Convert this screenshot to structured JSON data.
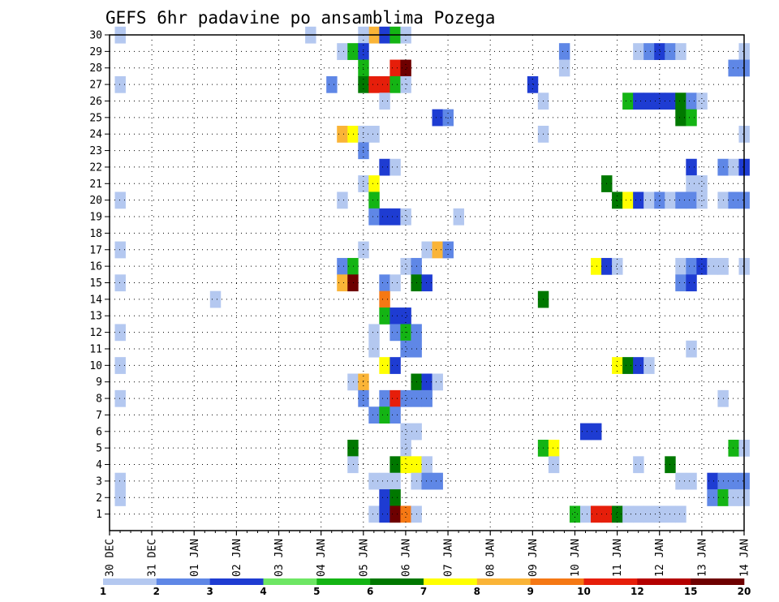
{
  "chart_data": {
    "type": "heatmap",
    "title": "GEFS 6hr padavine po ansamblima Pozega",
    "xlabel": "",
    "ylabel": "",
    "x_tick_labels": [
      "30 DEC",
      "31 DEC",
      "01 JAN",
      "02 JAN",
      "03 JAN",
      "04 JAN",
      "05 JAN",
      "06 JAN",
      "07 JAN",
      "08 JAN",
      "09 JAN",
      "10 JAN",
      "11 JAN",
      "12 JAN",
      "13 JAN",
      "14 JAN"
    ],
    "y_tick_labels": [
      "1",
      "2",
      "3",
      "4",
      "5",
      "6",
      "7",
      "8",
      "9",
      "10",
      "11",
      "12",
      "13",
      "14",
      "15",
      "16",
      "17",
      "18",
      "19",
      "20",
      "21",
      "22",
      "23",
      "24",
      "25",
      "26",
      "27",
      "28",
      "29",
      "30"
    ],
    "x_range_days": [
      0,
      15
    ],
    "y_range_members": [
      0,
      30
    ],
    "grid": true,
    "colorbar": {
      "placement": "bottom",
      "labels": [
        "1",
        "2",
        "3",
        "4",
        "5",
        "6",
        "7",
        "8",
        "9",
        "10",
        "12",
        "15",
        "20"
      ],
      "colors": [
        "#b4c8f0",
        "#5f87e6",
        "#1e3cd2",
        "#6ee664",
        "#14b414",
        "#007800",
        "#ffff00",
        "#fab437",
        "#f57814",
        "#e61e0a",
        "#b40000",
        "#6e0000"
      ]
    },
    "cells": [
      {
        "m": 30,
        "d": 0.25,
        "v": 1
      },
      {
        "m": 30,
        "d": 4.75,
        "v": 1
      },
      {
        "m": 30,
        "d": 6.25,
        "v": 8
      },
      {
        "m": 30,
        "d": 6.5,
        "v": 3
      },
      {
        "m": 30,
        "d": 6.75,
        "v": 5
      },
      {
        "m": 30,
        "d": 7.0,
        "v": 1
      },
      {
        "m": 30,
        "d": 6.0,
        "v": 1
      },
      {
        "m": 29,
        "d": 5.5,
        "v": 1
      },
      {
        "m": 29,
        "d": 5.75,
        "v": 5
      },
      {
        "m": 29,
        "d": 6.0,
        "v": 3
      },
      {
        "m": 29,
        "d": 10.75,
        "v": 2
      },
      {
        "m": 29,
        "d": 12.5,
        "v": 1
      },
      {
        "m": 29,
        "d": 12.75,
        "v": 2
      },
      {
        "m": 29,
        "d": 13.0,
        "v": 3
      },
      {
        "m": 29,
        "d": 13.25,
        "v": 2
      },
      {
        "m": 29,
        "d": 13.5,
        "v": 1
      },
      {
        "m": 29,
        "d": 15.0,
        "v": 1
      },
      {
        "m": 28,
        "d": 6.0,
        "v": 5
      },
      {
        "m": 28,
        "d": 6.75,
        "v": 10
      },
      {
        "m": 28,
        "d": 7.0,
        "v": 12
      },
      {
        "m": 28,
        "d": 10.75,
        "v": 1
      },
      {
        "m": 28,
        "d": 14.75,
        "v": 2
      },
      {
        "m": 28,
        "d": 15.0,
        "v": 2
      },
      {
        "m": 27,
        "d": 0.25,
        "v": 1
      },
      {
        "m": 27,
        "d": 5.25,
        "v": 2
      },
      {
        "m": 27,
        "d": 6.0,
        "v": 6
      },
      {
        "m": 27,
        "d": 6.25,
        "v": 10
      },
      {
        "m": 27,
        "d": 6.5,
        "v": 10
      },
      {
        "m": 27,
        "d": 6.75,
        "v": 5
      },
      {
        "m": 27,
        "d": 7.0,
        "v": 1
      },
      {
        "m": 27,
        "d": 10.0,
        "v": 3
      },
      {
        "m": 26,
        "d": 6.5,
        "v": 1
      },
      {
        "m": 26,
        "d": 10.25,
        "v": 1
      },
      {
        "m": 26,
        "d": 12.25,
        "v": 5
      },
      {
        "m": 26,
        "d": 12.5,
        "v": 3
      },
      {
        "m": 26,
        "d": 12.75,
        "v": 3
      },
      {
        "m": 26,
        "d": 13.0,
        "v": 3
      },
      {
        "m": 26,
        "d": 13.25,
        "v": 3
      },
      {
        "m": 26,
        "d": 13.5,
        "v": 6
      },
      {
        "m": 26,
        "d": 13.75,
        "v": 2
      },
      {
        "m": 26,
        "d": 14.0,
        "v": 1
      },
      {
        "m": 25,
        "d": 7.75,
        "v": 3
      },
      {
        "m": 25,
        "d": 8.0,
        "v": 2
      },
      {
        "m": 25,
        "d": 13.5,
        "v": 6
      },
      {
        "m": 25,
        "d": 13.75,
        "v": 5
      },
      {
        "m": 24,
        "d": 5.5,
        "v": 8
      },
      {
        "m": 24,
        "d": 5.75,
        "v": 7
      },
      {
        "m": 24,
        "d": 6.0,
        "v": 1
      },
      {
        "m": 24,
        "d": 6.25,
        "v": 1
      },
      {
        "m": 24,
        "d": 10.25,
        "v": 1
      },
      {
        "m": 24,
        "d": 15.0,
        "v": 1
      },
      {
        "m": 23,
        "d": 6.0,
        "v": 2
      },
      {
        "m": 22,
        "d": 6.5,
        "v": 3
      },
      {
        "m": 22,
        "d": 6.75,
        "v": 1
      },
      {
        "m": 22,
        "d": 13.75,
        "v": 3
      },
      {
        "m": 22,
        "d": 14.5,
        "v": 2
      },
      {
        "m": 22,
        "d": 14.75,
        "v": 1
      },
      {
        "m": 22,
        "d": 15.0,
        "v": 3
      },
      {
        "m": 21,
        "d": 6.0,
        "v": 1
      },
      {
        "m": 21,
        "d": 6.25,
        "v": 7
      },
      {
        "m": 21,
        "d": 11.75,
        "v": 6
      },
      {
        "m": 21,
        "d": 13.75,
        "v": 1
      },
      {
        "m": 21,
        "d": 14.0,
        "v": 1
      },
      {
        "m": 20,
        "d": 0.25,
        "v": 1
      },
      {
        "m": 20,
        "d": 5.5,
        "v": 1
      },
      {
        "m": 20,
        "d": 6.25,
        "v": 5
      },
      {
        "m": 20,
        "d": 12.0,
        "v": 6
      },
      {
        "m": 20,
        "d": 12.25,
        "v": 7
      },
      {
        "m": 20,
        "d": 12.5,
        "v": 3
      },
      {
        "m": 20,
        "d": 12.75,
        "v": 1
      },
      {
        "m": 20,
        "d": 13.0,
        "v": 2
      },
      {
        "m": 20,
        "d": 13.25,
        "v": 1
      },
      {
        "m": 20,
        "d": 13.5,
        "v": 2
      },
      {
        "m": 20,
        "d": 13.75,
        "v": 2
      },
      {
        "m": 20,
        "d": 14.0,
        "v": 1
      },
      {
        "m": 20,
        "d": 14.5,
        "v": 1
      },
      {
        "m": 20,
        "d": 14.75,
        "v": 2
      },
      {
        "m": 20,
        "d": 15.0,
        "v": 2
      },
      {
        "m": 19,
        "d": 6.25,
        "v": 2
      },
      {
        "m": 19,
        "d": 6.5,
        "v": 3
      },
      {
        "m": 19,
        "d": 6.75,
        "v": 3
      },
      {
        "m": 19,
        "d": 7.0,
        "v": 1
      },
      {
        "m": 19,
        "d": 8.25,
        "v": 1
      },
      {
        "m": 17,
        "d": 0.25,
        "v": 1
      },
      {
        "m": 17,
        "d": 6.0,
        "v": 1
      },
      {
        "m": 17,
        "d": 7.5,
        "v": 1
      },
      {
        "m": 17,
        "d": 7.75,
        "v": 8
      },
      {
        "m": 17,
        "d": 8.0,
        "v": 2
      },
      {
        "m": 16,
        "d": 5.5,
        "v": 2
      },
      {
        "m": 16,
        "d": 5.75,
        "v": 5
      },
      {
        "m": 16,
        "d": 7.0,
        "v": 1
      },
      {
        "m": 16,
        "d": 7.25,
        "v": 2
      },
      {
        "m": 16,
        "d": 11.5,
        "v": 7
      },
      {
        "m": 16,
        "d": 11.75,
        "v": 3
      },
      {
        "m": 16,
        "d": 12.0,
        "v": 1
      },
      {
        "m": 16,
        "d": 13.5,
        "v": 1
      },
      {
        "m": 16,
        "d": 13.75,
        "v": 2
      },
      {
        "m": 16,
        "d": 14.0,
        "v": 3
      },
      {
        "m": 16,
        "d": 14.25,
        "v": 1
      },
      {
        "m": 16,
        "d": 14.5,
        "v": 1
      },
      {
        "m": 16,
        "d": 15.0,
        "v": 1
      },
      {
        "m": 15,
        "d": 0.25,
        "v": 1
      },
      {
        "m": 15,
        "d": 5.5,
        "v": 8
      },
      {
        "m": 15,
        "d": 5.75,
        "v": 12
      },
      {
        "m": 15,
        "d": 6.5,
        "v": 2
      },
      {
        "m": 15,
        "d": 6.75,
        "v": 1
      },
      {
        "m": 15,
        "d": 7.25,
        "v": 6
      },
      {
        "m": 15,
        "d": 7.5,
        "v": 3
      },
      {
        "m": 15,
        "d": 13.5,
        "v": 2
      },
      {
        "m": 15,
        "d": 13.75,
        "v": 3
      },
      {
        "m": 14,
        "d": 2.5,
        "v": 1
      },
      {
        "m": 14,
        "d": 6.5,
        "v": 9
      },
      {
        "m": 14,
        "d": 10.25,
        "v": 6
      },
      {
        "m": 13,
        "d": 6.5,
        "v": 5
      },
      {
        "m": 13,
        "d": 6.75,
        "v": 3
      },
      {
        "m": 13,
        "d": 7.0,
        "v": 3
      },
      {
        "m": 12,
        "d": 0.25,
        "v": 1
      },
      {
        "m": 12,
        "d": 6.25,
        "v": 1
      },
      {
        "m": 12,
        "d": 6.75,
        "v": 2
      },
      {
        "m": 12,
        "d": 7.0,
        "v": 5
      },
      {
        "m": 12,
        "d": 7.25,
        "v": 2
      },
      {
        "m": 11,
        "d": 6.25,
        "v": 1
      },
      {
        "m": 11,
        "d": 7.0,
        "v": 2
      },
      {
        "m": 11,
        "d": 7.25,
        "v": 2
      },
      {
        "m": 11,
        "d": 13.75,
        "v": 1
      },
      {
        "m": 10,
        "d": 0.25,
        "v": 1
      },
      {
        "m": 10,
        "d": 6.5,
        "v": 7
      },
      {
        "m": 10,
        "d": 6.75,
        "v": 3
      },
      {
        "m": 10,
        "d": 12.0,
        "v": 7
      },
      {
        "m": 10,
        "d": 12.25,
        "v": 6
      },
      {
        "m": 10,
        "d": 12.5,
        "v": 3
      },
      {
        "m": 10,
        "d": 12.75,
        "v": 1
      },
      {
        "m": 9,
        "d": 5.75,
        "v": 1
      },
      {
        "m": 9,
        "d": 6.0,
        "v": 8
      },
      {
        "m": 9,
        "d": 7.25,
        "v": 6
      },
      {
        "m": 9,
        "d": 7.5,
        "v": 3
      },
      {
        "m": 9,
        "d": 7.75,
        "v": 1
      },
      {
        "m": 8,
        "d": 0.25,
        "v": 1
      },
      {
        "m": 8,
        "d": 6.0,
        "v": 2
      },
      {
        "m": 8,
        "d": 6.5,
        "v": 2
      },
      {
        "m": 8,
        "d": 6.75,
        "v": 10
      },
      {
        "m": 8,
        "d": 7.0,
        "v": 2
      },
      {
        "m": 8,
        "d": 7.25,
        "v": 2
      },
      {
        "m": 8,
        "d": 7.5,
        "v": 2
      },
      {
        "m": 8,
        "d": 14.5,
        "v": 1
      },
      {
        "m": 7,
        "d": 6.25,
        "v": 2
      },
      {
        "m": 7,
        "d": 6.5,
        "v": 5
      },
      {
        "m": 7,
        "d": 6.75,
        "v": 2
      },
      {
        "m": 6,
        "d": 7.0,
        "v": 1
      },
      {
        "m": 6,
        "d": 7.25,
        "v": 1
      },
      {
        "m": 6,
        "d": 11.25,
        "v": 3
      },
      {
        "m": 6,
        "d": 11.5,
        "v": 3
      },
      {
        "m": 5,
        "d": 5.75,
        "v": 6
      },
      {
        "m": 5,
        "d": 7.0,
        "v": 1
      },
      {
        "m": 5,
        "d": 10.25,
        "v": 5
      },
      {
        "m": 5,
        "d": 10.5,
        "v": 7
      },
      {
        "m": 5,
        "d": 14.75,
        "v": 5
      },
      {
        "m": 5,
        "d": 15.0,
        "v": 1
      },
      {
        "m": 4,
        "d": 5.75,
        "v": 1
      },
      {
        "m": 4,
        "d": 6.75,
        "v": 6
      },
      {
        "m": 4,
        "d": 7.0,
        "v": 7
      },
      {
        "m": 4,
        "d": 7.25,
        "v": 7
      },
      {
        "m": 4,
        "d": 7.5,
        "v": 1
      },
      {
        "m": 4,
        "d": 10.5,
        "v": 1
      },
      {
        "m": 4,
        "d": 12.5,
        "v": 1
      },
      {
        "m": 4,
        "d": 13.25,
        "v": 6
      },
      {
        "m": 3,
        "d": 0.25,
        "v": 1
      },
      {
        "m": 3,
        "d": 6.25,
        "v": 1
      },
      {
        "m": 3,
        "d": 6.5,
        "v": 1
      },
      {
        "m": 3,
        "d": 6.75,
        "v": 1
      },
      {
        "m": 3,
        "d": 7.25,
        "v": 1
      },
      {
        "m": 3,
        "d": 7.5,
        "v": 2
      },
      {
        "m": 3,
        "d": 7.75,
        "v": 2
      },
      {
        "m": 3,
        "d": 13.5,
        "v": 1
      },
      {
        "m": 3,
        "d": 13.75,
        "v": 1
      },
      {
        "m": 3,
        "d": 14.25,
        "v": 3
      },
      {
        "m": 3,
        "d": 14.5,
        "v": 2
      },
      {
        "m": 3,
        "d": 14.75,
        "v": 2
      },
      {
        "m": 3,
        "d": 15.0,
        "v": 2
      },
      {
        "m": 2,
        "d": 0.25,
        "v": 1
      },
      {
        "m": 2,
        "d": 6.5,
        "v": 3
      },
      {
        "m": 2,
        "d": 6.75,
        "v": 6
      },
      {
        "m": 2,
        "d": 14.25,
        "v": 2
      },
      {
        "m": 2,
        "d": 14.5,
        "v": 5
      },
      {
        "m": 2,
        "d": 14.75,
        "v": 1
      },
      {
        "m": 2,
        "d": 15.0,
        "v": 1
      },
      {
        "m": 1,
        "d": 6.25,
        "v": 1
      },
      {
        "m": 1,
        "d": 6.5,
        "v": 3
      },
      {
        "m": 1,
        "d": 6.75,
        "v": 12
      },
      {
        "m": 1,
        "d": 7.0,
        "v": 9
      },
      {
        "m": 1,
        "d": 7.25,
        "v": 1
      },
      {
        "m": 1,
        "d": 11.0,
        "v": 5
      },
      {
        "m": 1,
        "d": 11.25,
        "v": 1
      },
      {
        "m": 1,
        "d": 11.5,
        "v": 10
      },
      {
        "m": 1,
        "d": 11.75,
        "v": 10
      },
      {
        "m": 1,
        "d": 12.0,
        "v": 6
      },
      {
        "m": 1,
        "d": 12.25,
        "v": 1
      },
      {
        "m": 1,
        "d": 12.5,
        "v": 1
      },
      {
        "m": 1,
        "d": 12.75,
        "v": 1
      },
      {
        "m": 1,
        "d": 13.0,
        "v": 1
      },
      {
        "m": 1,
        "d": 13.25,
        "v": 1
      },
      {
        "m": 1,
        "d": 13.5,
        "v": 1
      }
    ]
  }
}
